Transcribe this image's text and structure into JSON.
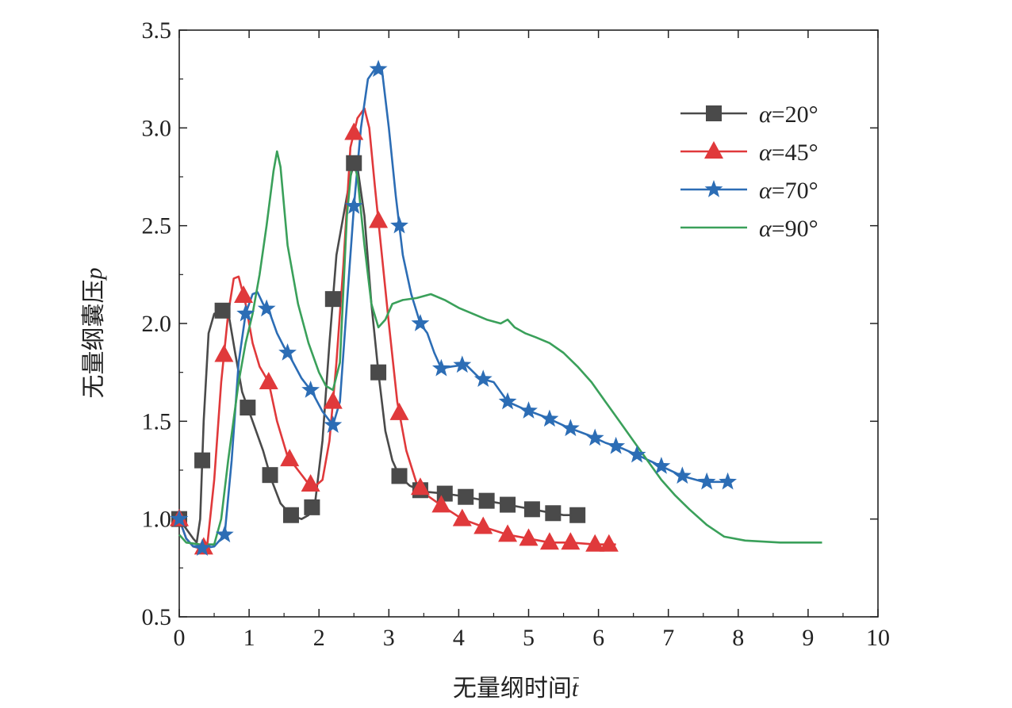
{
  "chart_data": {
    "type": "line",
    "xlabel_text": "无量纲时间",
    "xlabel_symbol": "t",
    "ylabel_text": "无量纲囊压",
    "ylabel_symbol": "p",
    "xlim": [
      0,
      10
    ],
    "ylim": [
      0.5,
      3.5
    ],
    "x_ticks": [
      "0",
      "1",
      "2",
      "3",
      "4",
      "5",
      "6",
      "7",
      "8",
      "9",
      "10"
    ],
    "y_ticks": [
      "0.5",
      "1.0",
      "1.5",
      "2.0",
      "2.5",
      "3.0",
      "3.5"
    ],
    "grid": false,
    "legend_position": "top-right",
    "series": [
      {
        "name": "α=20°",
        "label_symbol": "α",
        "label_value": "=20°",
        "color": "#4a4a4a",
        "marker": "square",
        "points": [
          [
            0,
            1.0
          ],
          [
            0.1,
            0.95
          ],
          [
            0.2,
            0.9
          ],
          [
            0.25,
            0.88
          ],
          [
            0.3,
            1.0
          ],
          [
            0.35,
            1.5
          ],
          [
            0.42,
            1.95
          ],
          [
            0.5,
            2.05
          ],
          [
            0.58,
            2.06
          ],
          [
            0.65,
            2.07
          ],
          [
            0.72,
            2.02
          ],
          [
            0.8,
            1.85
          ],
          [
            0.9,
            1.65
          ],
          [
            1.05,
            1.5
          ],
          [
            1.2,
            1.35
          ],
          [
            1.32,
            1.2
          ],
          [
            1.45,
            1.08
          ],
          [
            1.6,
            1.02
          ],
          [
            1.75,
            1.0
          ],
          [
            1.85,
            1.02
          ],
          [
            1.95,
            1.1
          ],
          [
            2.05,
            1.4
          ],
          [
            2.15,
            1.9
          ],
          [
            2.25,
            2.35
          ],
          [
            2.35,
            2.55
          ],
          [
            2.45,
            2.75
          ],
          [
            2.5,
            2.82
          ],
          [
            2.55,
            2.8
          ],
          [
            2.65,
            2.55
          ],
          [
            2.75,
            2.1
          ],
          [
            2.85,
            1.75
          ],
          [
            2.95,
            1.45
          ],
          [
            3.05,
            1.3
          ],
          [
            3.15,
            1.22
          ],
          [
            3.3,
            1.17
          ],
          [
            3.5,
            1.14
          ],
          [
            3.8,
            1.13
          ],
          [
            4.0,
            1.12
          ],
          [
            4.3,
            1.1
          ],
          [
            4.6,
            1.08
          ],
          [
            4.9,
            1.06
          ],
          [
            5.2,
            1.04
          ],
          [
            5.5,
            1.02
          ],
          [
            5.7,
            1.02
          ]
        ],
        "markers_x": [
          0,
          0.33,
          0.62,
          0.98,
          1.3,
          1.6,
          1.9,
          2.2,
          2.5,
          2.85,
          3.15,
          3.45,
          3.8,
          4.1,
          4.4,
          4.7,
          5.05,
          5.35,
          5.7
        ]
      },
      {
        "name": "α=45°",
        "label_symbol": "α",
        "label_value": "=45°",
        "color": "#e0393b",
        "marker": "triangle",
        "points": [
          [
            0,
            1.0
          ],
          [
            0.1,
            0.9
          ],
          [
            0.2,
            0.86
          ],
          [
            0.3,
            0.85
          ],
          [
            0.4,
            0.86
          ],
          [
            0.5,
            1.2
          ],
          [
            0.6,
            1.7
          ],
          [
            0.7,
            2.05
          ],
          [
            0.78,
            2.23
          ],
          [
            0.85,
            2.24
          ],
          [
            0.95,
            2.1
          ],
          [
            1.05,
            1.9
          ],
          [
            1.15,
            1.78
          ],
          [
            1.28,
            1.7
          ],
          [
            1.4,
            1.5
          ],
          [
            1.55,
            1.32
          ],
          [
            1.7,
            1.25
          ],
          [
            1.85,
            1.18
          ],
          [
            1.95,
            1.17
          ],
          [
            2.05,
            1.2
          ],
          [
            2.15,
            1.4
          ],
          [
            2.25,
            1.8
          ],
          [
            2.35,
            2.3
          ],
          [
            2.45,
            2.9
          ],
          [
            2.55,
            3.05
          ],
          [
            2.65,
            3.1
          ],
          [
            2.72,
            3.0
          ],
          [
            2.8,
            2.7
          ],
          [
            2.9,
            2.35
          ],
          [
            3.0,
            2.0
          ],
          [
            3.12,
            1.6
          ],
          [
            3.25,
            1.35
          ],
          [
            3.4,
            1.18
          ],
          [
            3.55,
            1.12
          ],
          [
            3.75,
            1.07
          ],
          [
            4.05,
            1.0
          ],
          [
            4.35,
            0.96
          ],
          [
            4.7,
            0.92
          ],
          [
            5.0,
            0.9
          ],
          [
            5.3,
            0.88
          ],
          [
            5.6,
            0.88
          ],
          [
            5.95,
            0.87
          ],
          [
            6.25,
            0.87
          ]
        ],
        "markers_x": [
          0,
          0.35,
          0.64,
          0.92,
          1.28,
          1.58,
          1.88,
          2.2,
          2.5,
          2.85,
          3.15,
          3.45,
          3.75,
          4.05,
          4.35,
          4.7,
          5.0,
          5.3,
          5.6,
          5.95,
          6.15
        ]
      },
      {
        "name": "α=70°",
        "label_symbol": "α",
        "label_value": "=70°",
        "color": "#2c6db5",
        "marker": "star",
        "points": [
          [
            0,
            1.0
          ],
          [
            0.1,
            0.9
          ],
          [
            0.2,
            0.86
          ],
          [
            0.35,
            0.85
          ],
          [
            0.5,
            0.86
          ],
          [
            0.65,
            0.92
          ],
          [
            0.75,
            1.3
          ],
          [
            0.85,
            1.8
          ],
          [
            0.95,
            2.05
          ],
          [
            1.05,
            2.15
          ],
          [
            1.12,
            2.16
          ],
          [
            1.2,
            2.1
          ],
          [
            1.3,
            2.05
          ],
          [
            1.4,
            1.95
          ],
          [
            1.5,
            1.88
          ],
          [
            1.6,
            1.82
          ],
          [
            1.75,
            1.72
          ],
          [
            1.9,
            1.65
          ],
          [
            2.05,
            1.55
          ],
          [
            2.2,
            1.48
          ],
          [
            2.3,
            1.6
          ],
          [
            2.4,
            2.1
          ],
          [
            2.5,
            2.6
          ],
          [
            2.6,
            3.0
          ],
          [
            2.7,
            3.25
          ],
          [
            2.8,
            3.3
          ],
          [
            2.9,
            3.3
          ],
          [
            3.0,
            3.0
          ],
          [
            3.1,
            2.65
          ],
          [
            3.2,
            2.35
          ],
          [
            3.32,
            2.15
          ],
          [
            3.45,
            2.0
          ],
          [
            3.55,
            1.95
          ],
          [
            3.65,
            1.85
          ],
          [
            3.75,
            1.77
          ],
          [
            3.9,
            1.78
          ],
          [
            4.1,
            1.79
          ],
          [
            4.3,
            1.72
          ],
          [
            4.5,
            1.7
          ],
          [
            4.7,
            1.6
          ],
          [
            4.95,
            1.56
          ],
          [
            5.25,
            1.52
          ],
          [
            5.55,
            1.47
          ],
          [
            5.85,
            1.43
          ],
          [
            6.1,
            1.39
          ],
          [
            6.35,
            1.36
          ],
          [
            6.6,
            1.32
          ],
          [
            6.9,
            1.27
          ],
          [
            7.2,
            1.22
          ],
          [
            7.5,
            1.19
          ],
          [
            7.85,
            1.19
          ]
        ],
        "markers_x": [
          0,
          0.33,
          0.65,
          0.95,
          1.25,
          1.55,
          1.88,
          2.2,
          2.5,
          2.85,
          3.15,
          3.45,
          3.75,
          4.05,
          4.35,
          4.7,
          5.0,
          5.3,
          5.6,
          5.95,
          6.25,
          6.55,
          6.9,
          7.2,
          7.55,
          7.85
        ]
      },
      {
        "name": "α=90°",
        "label_symbol": "α",
        "label_value": "=90°",
        "color": "#3aa05a",
        "marker": "none",
        "points": [
          [
            0,
            0.92
          ],
          [
            0.1,
            0.88
          ],
          [
            0.3,
            0.87
          ],
          [
            0.5,
            0.87
          ],
          [
            0.6,
            1.0
          ],
          [
            0.7,
            1.3
          ],
          [
            0.85,
            1.7
          ],
          [
            0.95,
            1.9
          ],
          [
            1.05,
            2.05
          ],
          [
            1.15,
            2.25
          ],
          [
            1.25,
            2.5
          ],
          [
            1.35,
            2.78
          ],
          [
            1.4,
            2.88
          ],
          [
            1.45,
            2.8
          ],
          [
            1.55,
            2.4
          ],
          [
            1.7,
            2.1
          ],
          [
            1.85,
            1.9
          ],
          [
            2.0,
            1.75
          ],
          [
            2.1,
            1.68
          ],
          [
            2.2,
            1.66
          ],
          [
            2.3,
            1.8
          ],
          [
            2.4,
            2.55
          ],
          [
            2.48,
            2.85
          ],
          [
            2.55,
            2.75
          ],
          [
            2.65,
            2.4
          ],
          [
            2.75,
            2.1
          ],
          [
            2.85,
            1.98
          ],
          [
            2.95,
            2.02
          ],
          [
            3.05,
            2.1
          ],
          [
            3.2,
            2.12
          ],
          [
            3.4,
            2.13
          ],
          [
            3.6,
            2.15
          ],
          [
            3.8,
            2.12
          ],
          [
            4.0,
            2.08
          ],
          [
            4.2,
            2.05
          ],
          [
            4.4,
            2.02
          ],
          [
            4.6,
            2.0
          ],
          [
            4.7,
            2.02
          ],
          [
            4.8,
            1.98
          ],
          [
            4.95,
            1.95
          ],
          [
            5.1,
            1.93
          ],
          [
            5.3,
            1.9
          ],
          [
            5.5,
            1.85
          ],
          [
            5.7,
            1.78
          ],
          [
            5.9,
            1.7
          ],
          [
            6.1,
            1.6
          ],
          [
            6.3,
            1.5
          ],
          [
            6.5,
            1.4
          ],
          [
            6.7,
            1.3
          ],
          [
            6.9,
            1.2
          ],
          [
            7.1,
            1.12
          ],
          [
            7.3,
            1.05
          ],
          [
            7.55,
            0.97
          ],
          [
            7.8,
            0.91
          ],
          [
            8.1,
            0.89
          ],
          [
            8.6,
            0.88
          ],
          [
            9.2,
            0.88
          ]
        ],
        "markers_x": []
      }
    ]
  }
}
